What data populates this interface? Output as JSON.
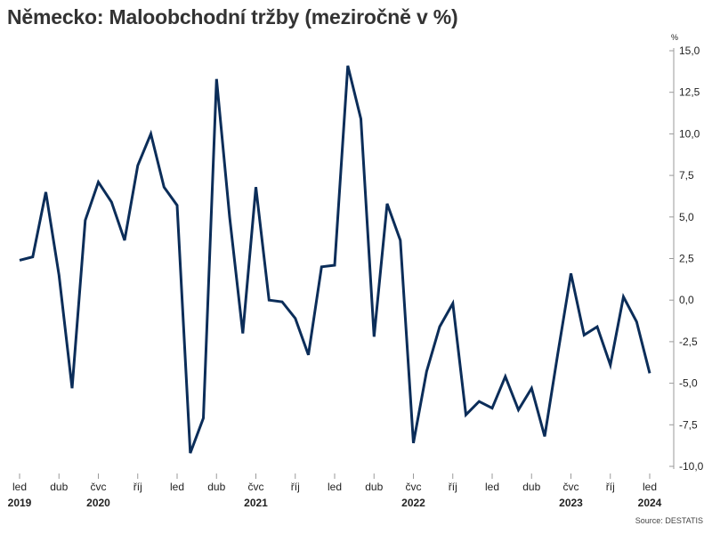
{
  "chart_data": {
    "type": "line",
    "title": "Německo: Maloobchodní tržby (meziročně v %)",
    "unit": "%",
    "source": "Source: DESTATIS",
    "color": "#0b2d59",
    "ylim": [
      -10,
      15
    ],
    "yticks": [
      15,
      12.5,
      10,
      7.5,
      5,
      2.5,
      0,
      -2.5,
      -5,
      -7.5,
      -10
    ],
    "ytick_labels": [
      "15,0",
      "12,5",
      "10,0",
      "7,5",
      "5,0",
      "2,5",
      "0,0",
      "-2,5",
      "-5,0",
      "-7,5",
      "-10,0"
    ],
    "yaxis_position": "right",
    "grid": false,
    "x_start": "2019-01",
    "x_month_ticks": [
      {
        "month_index": 0,
        "label": "led"
      },
      {
        "month_index": 3,
        "label": "dub"
      },
      {
        "month_index": 6,
        "label": "čvc"
      },
      {
        "month_index": 9,
        "label": "říj"
      },
      {
        "month_index": 12,
        "label": "led"
      },
      {
        "month_index": 15,
        "label": "dub"
      },
      {
        "month_index": 18,
        "label": "čvc"
      },
      {
        "month_index": 21,
        "label": "říj"
      },
      {
        "month_index": 24,
        "label": "led"
      },
      {
        "month_index": 27,
        "label": "dub"
      },
      {
        "month_index": 30,
        "label": "čvc"
      },
      {
        "month_index": 33,
        "label": "říj"
      },
      {
        "month_index": 36,
        "label": "led"
      },
      {
        "month_index": 39,
        "label": "dub"
      },
      {
        "month_index": 42,
        "label": "čvc"
      },
      {
        "month_index": 45,
        "label": "říj"
      },
      {
        "month_index": 48,
        "label": "led"
      }
    ],
    "x_year_labels": [
      {
        "month_index": 0,
        "label": "2019"
      },
      {
        "month_index": 6,
        "label": "2020"
      },
      {
        "month_index": 18,
        "label": "2021"
      },
      {
        "month_index": 30,
        "label": "2022"
      },
      {
        "month_index": 42,
        "label": "2023"
      },
      {
        "month_index": 48,
        "label": "2024"
      }
    ],
    "series": [
      {
        "values": [
          2.4,
          2.6,
          6.5,
          1.5,
          -5.3,
          4.8,
          7.1,
          5.9,
          3.6,
          8.1,
          10.0,
          6.8,
          5.7,
          -9.2,
          -7.1,
          13.3,
          5.0,
          -2.0,
          6.8,
          0.0,
          -0.1,
          -1.1,
          -3.3,
          2.0,
          2.1,
          14.1,
          10.9,
          -2.2,
          5.8,
          3.6,
          -8.6,
          -4.3,
          -1.6,
          -0.2,
          -6.9,
          -6.1,
          -6.5,
          -4.6,
          -6.6,
          -5.3,
          -8.2,
          -3.2,
          1.6,
          -2.1,
          -1.6,
          -3.9,
          0.2,
          -1.3,
          -4.4
        ]
      }
    ]
  }
}
